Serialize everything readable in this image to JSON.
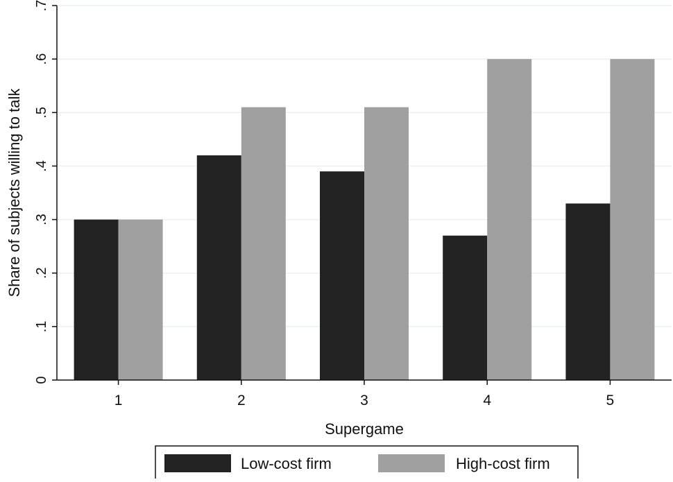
{
  "chart_data": {
    "type": "bar",
    "title": "",
    "xlabel": "Supergame",
    "ylabel": "Share of subjects willing to talk",
    "categories": [
      "1",
      "2",
      "3",
      "4",
      "5"
    ],
    "series": [
      {
        "name": "Low-cost firm",
        "color": "#222222",
        "values": [
          0.3,
          0.42,
          0.39,
          0.27,
          0.33
        ]
      },
      {
        "name": "High-cost firm",
        "color": "#a0a0a0",
        "values": [
          0.3,
          0.51,
          0.51,
          0.6,
          0.6
        ]
      }
    ],
    "ylim": [
      0,
      0.7
    ],
    "yticks": [
      0,
      0.1,
      0.2,
      0.3,
      0.4,
      0.5,
      0.6,
      0.7
    ],
    "ytick_labels": [
      "0",
      ".1",
      ".2",
      ".3",
      ".4",
      ".5",
      ".6",
      ".7"
    ],
    "grid": true,
    "legend_position": "bottom"
  }
}
